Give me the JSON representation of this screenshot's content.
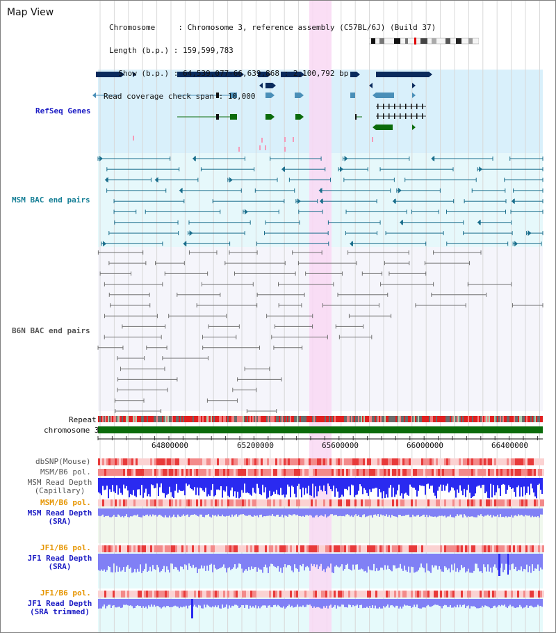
{
  "header": {
    "title": "Map View",
    "chromosome_line": "Chromosome     : Chromosome 3, reference assembly (C57BL/6J) (Build 37)",
    "length_line": "Length (b.p.) : 159,599,783",
    "show_line": "  Show (b.p.) : 64,539,077-66,639,868 : 2,100,792 bp",
    "coverage_line": "Read coverage check span : 10,000"
  },
  "tracks": {
    "refseq": "RefSeq Genes",
    "msm_bac": "MSM BAC end pairs",
    "b6n_bac": "B6N BAC end pairs",
    "repeat": "Repeat",
    "chromosome": "chromosome 3",
    "dbsnp": "dbSNP(Mouse)",
    "msm_b6_pol_1": "MSM/B6 pol.",
    "msm_read_depth_cap_1": "MSM Read Depth",
    "msm_read_depth_cap_2": "(Capillary)",
    "msm_b6_pol_2": "MSM/B6 pol.",
    "msm_read_depth_sra_1": "MSM Read Depth",
    "msm_read_depth_sra_2": "(SRA)",
    "jf1_b6_pol_1": "JF1/B6 pol.",
    "jf1_read_depth_sra_1": "JF1 Read Depth",
    "jf1_read_depth_sra_2": "(SRA)",
    "jf1_b6_pol_2": "JF1/B6 pol.",
    "jf1_read_depth_trim_1": "JF1 Read Depth",
    "jf1_read_depth_trim_2": "(SRA trimmed)"
  },
  "axis": {
    "ticks": [
      "64800000",
      "65200000",
      "65600000",
      "66000000",
      "66400000"
    ]
  },
  "colors": {
    "refseq_bg": "#d9f0fb",
    "msm_bg": "#e6f8fb",
    "b6n_bg": "#f5f5fb",
    "highlight": "#f9d8f3",
    "grid": "#d8d8d8",
    "navy": "#0a2a5c",
    "teal": "#1a6e8c",
    "steel": "#4a8fb8",
    "green": "#0b6b0b",
    "pink": "#f59ab8",
    "gray_pair": "#707070",
    "label_blue": "#1c1cc4",
    "label_orange": "#e69500",
    "label_teal": "#167f96",
    "label_gray": "#555555",
    "depth_blue": "#2a2af0",
    "depth_light": "#8080f5"
  }
}
